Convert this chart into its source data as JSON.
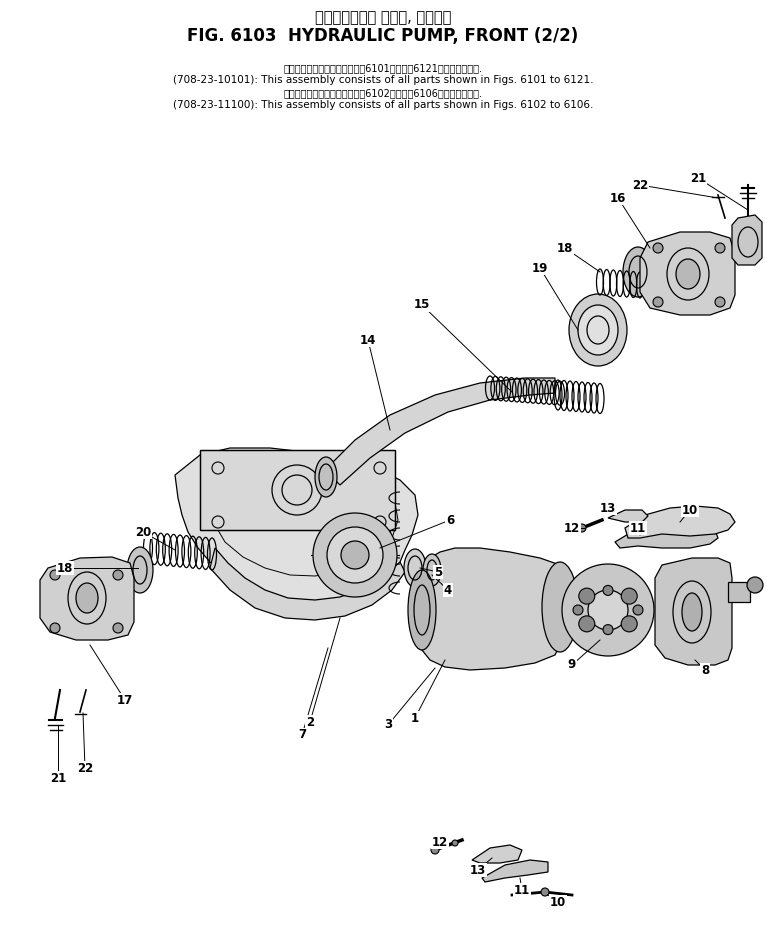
{
  "title_jp": "ハイドロリック ポンプ, フロント",
  "title_en": "FIG. 6103  HYDRAULIC PUMP, FRONT (2/2)",
  "note1_jp": "このアセンブリの構成部品は第6101図から第6121図まで含みます.",
  "note1_en": "(708-23-10101): This assembly consists of all parts shown in Figs. 6101 to 6121.",
  "note2_jp": "このアセンブリの構成部品は第6102図から第6106図まで含みます.",
  "note2_en": "(708-23-11100): This assembly consists of all parts shown in Figs. 6102 to 6106.",
  "bg_color": "#ffffff"
}
